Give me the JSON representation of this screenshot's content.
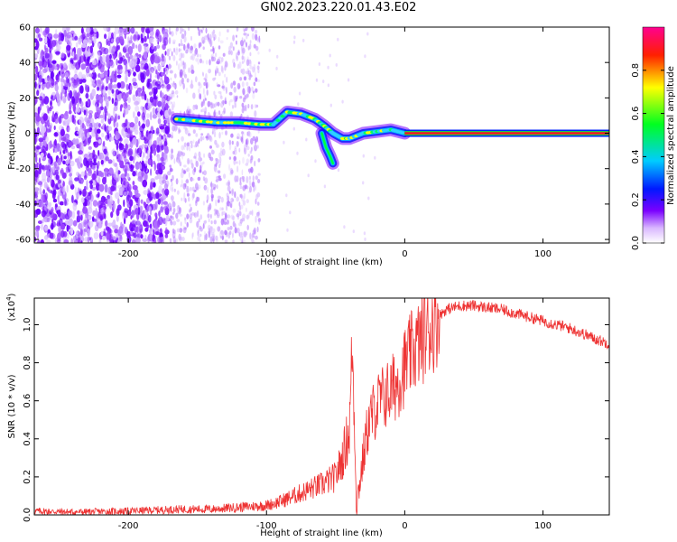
{
  "title": "GN02.2023.220.01.43.E02",
  "colors": {
    "snr_line": "#ee3333",
    "signal_core": "#ff1020",
    "track_band": "#22cc44",
    "frame": "#000000"
  },
  "colorbar": {
    "label": "Normalized spectral amplitude",
    "ticks": [
      "0.0",
      "0.2",
      "0.4",
      "0.6",
      "0.8"
    ],
    "tick_values": [
      0.0,
      0.2,
      0.4,
      0.6,
      0.8
    ],
    "range": [
      0,
      1
    ],
    "colormap": "rainbow (white-purple-blue-cyan-green-yellow-red-magenta)"
  },
  "chart_data": [
    {
      "type": "heatmap",
      "xlabel": "Height of straight line (km)",
      "ylabel": "Frequency (Hz)",
      "xlim": [
        -268,
        148
      ],
      "ylim": [
        -62,
        60
      ],
      "x_ticks": [
        -200,
        -100,
        0,
        100
      ],
      "x_tick_labels": [
        "-200",
        "-100",
        "0",
        "100"
      ],
      "y_ticks": [
        -60,
        -40,
        -20,
        0,
        20,
        40,
        60
      ],
      "y_tick_labels": [
        "-60",
        "-40",
        "-20",
        "0",
        "20",
        "40",
        "60"
      ],
      "noise_region_x": [
        -268,
        -105
      ],
      "dense_noise_x": [
        -268,
        -170
      ],
      "signal_track": {
        "x": [
          -165,
          -150,
          -135,
          -120,
          -105,
          -95,
          -85,
          -75,
          -65,
          -58,
          -52,
          -45,
          -40,
          -30,
          -20,
          -10,
          0,
          148
        ],
        "y": [
          8,
          7,
          6,
          6,
          5,
          5,
          12,
          11,
          8,
          4,
          0,
          -3,
          -3,
          0,
          1,
          2,
          0,
          0
        ]
      },
      "branch_track": {
        "x": [
          -60,
          -57,
          -54,
          -52
        ],
        "y": [
          0,
          -8,
          -13,
          -17
        ]
      },
      "horizontal_line_y": 0,
      "horizontal_line_x": [
        0,
        148
      ]
    },
    {
      "type": "line",
      "xlabel": "Height of straight line (km)",
      "ylabel": "SNR (10 * v/v)",
      "y_exponent_label": "(x10",
      "y_exponent_power": "4",
      "y_exponent_close": ")",
      "xlim": [
        -268,
        148
      ],
      "ylim": [
        0,
        1.14
      ],
      "x_ticks": [
        -200,
        -100,
        0,
        100
      ],
      "x_tick_labels": [
        "-200",
        "-100",
        "0",
        "100"
      ],
      "y_ticks": [
        0.0,
        0.2,
        0.4,
        0.6,
        0.8,
        1.0
      ],
      "y_tick_labels": [
        "0.0",
        "0.2",
        "0.4",
        "0.6",
        "0.8",
        "1.0"
      ],
      "series": [
        {
          "x": [
            -268,
            -240,
            -200,
            -160,
            -140,
            -120,
            -100,
            -90,
            -80,
            -70,
            -60,
            -50,
            -45,
            -40,
            -38,
            -36,
            -35,
            -33,
            -30,
            -27,
            -25,
            -22,
            -18,
            -15,
            -10,
            -5,
            0,
            5,
            10,
            15,
            20,
            25,
            30,
            40,
            50,
            60,
            70,
            80,
            90,
            100,
            110,
            120,
            130,
            140,
            148
          ],
          "y": [
            0.02,
            0.015,
            0.02,
            0.03,
            0.03,
            0.04,
            0.05,
            0.07,
            0.1,
            0.13,
            0.16,
            0.2,
            0.3,
            0.45,
            0.9,
            0.4,
            0.05,
            0.15,
            0.3,
            0.45,
            0.5,
            0.55,
            0.6,
            0.62,
            0.65,
            0.7,
            0.78,
            0.85,
            0.9,
            0.95,
            1.0,
            1.05,
            1.08,
            1.1,
            1.1,
            1.09,
            1.08,
            1.06,
            1.04,
            1.02,
            1.0,
            0.98,
            0.95,
            0.92,
            0.9
          ]
        }
      ]
    }
  ]
}
